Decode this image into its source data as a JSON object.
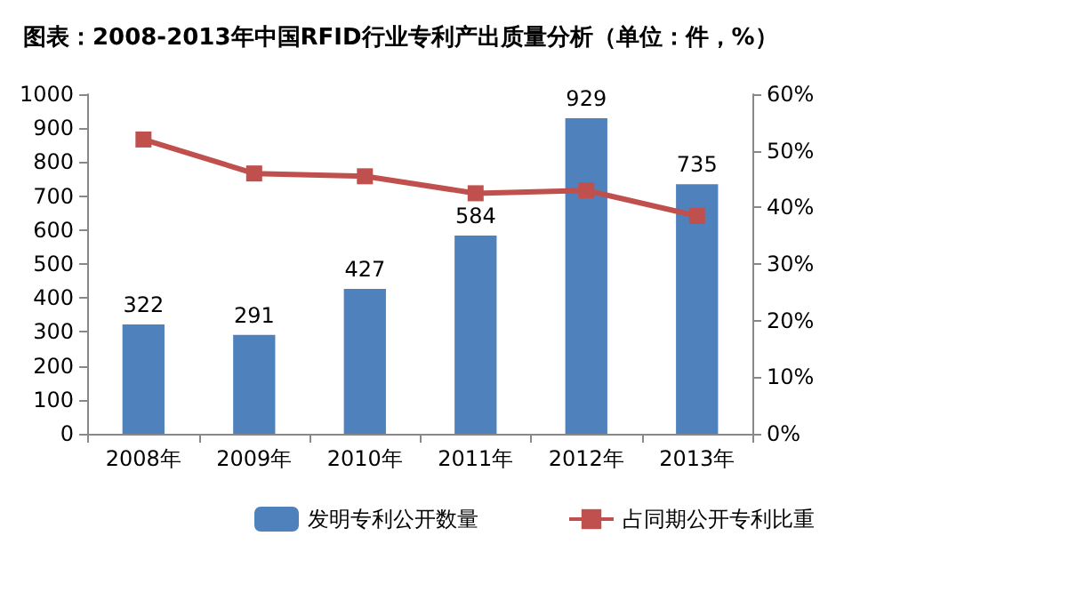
{
  "chart_data": {
    "type": "bar",
    "title": "图表：2008-2013年中国RFID行业专利产出质量分析（单位：件，%）",
    "categories": [
      "2008年",
      "2009年",
      "2010年",
      "2011年",
      "2012年",
      "2013年"
    ],
    "series": [
      {
        "name": "发明专利公开数量",
        "color": "#4f81bd",
        "values": [
          322,
          291,
          427,
          584,
          929,
          735
        ],
        "data_labels": true
      },
      {
        "name": "占同期公开专利比重",
        "type": "line",
        "axis": "y2",
        "color": "#c0504d",
        "values": [
          52,
          46,
          45.5,
          42.5,
          43,
          38.5
        ]
      }
    ],
    "ylim": [
      0,
      1000
    ],
    "yticks": [
      0,
      100,
      200,
      300,
      400,
      500,
      600,
      700,
      800,
      900,
      1000
    ],
    "y2lim": [
      0,
      60
    ],
    "y2ticks": [
      {
        "value": 0,
        "label": "0%"
      },
      {
        "value": 10,
        "label": "10%"
      },
      {
        "value": 20,
        "label": "20%"
      },
      {
        "value": 30,
        "label": "30%"
      },
      {
        "value": 40,
        "label": "40%"
      },
      {
        "value": 50,
        "label": "50%"
      },
      {
        "value": 60,
        "label": "60%"
      }
    ],
    "marker": "square",
    "legend": "bottom",
    "grid": false
  }
}
